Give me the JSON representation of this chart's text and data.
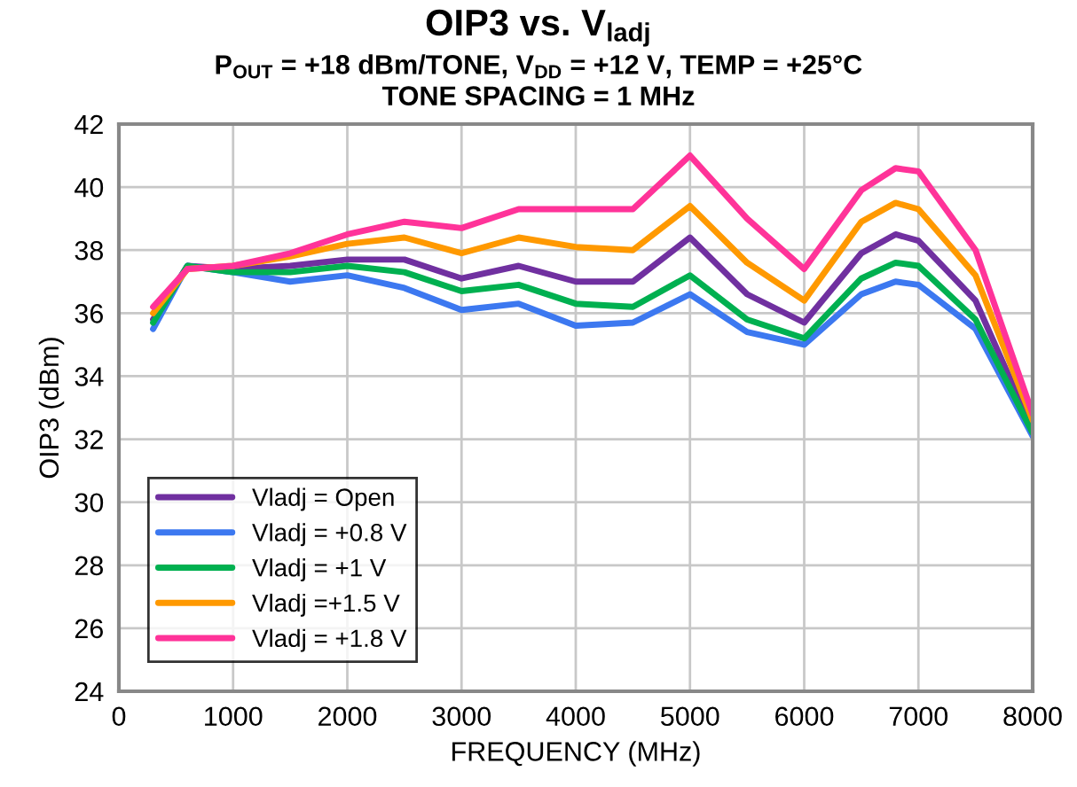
{
  "chart_data": {
    "type": "line",
    "title": "OIP3 vs. V$_{ladj}$",
    "subtitle": "P$_{OUT}$ = +18 dBm/TONE, V$_{DD}$ = +12 V, TEMP = +25°C\nTONE SPACING = 1 MHz",
    "xlabel": "FREQUENCY (MHz)",
    "ylabel": "OIP3 (dBm)",
    "x": [
      300,
      600,
      1000,
      1500,
      2000,
      2500,
      3000,
      3500,
      4000,
      4500,
      5000,
      5500,
      6000,
      6500,
      6800,
      7000,
      7500,
      8000
    ],
    "series": [
      {
        "name": "Vladj = Open",
        "color": "#7030a0",
        "values": [
          35.8,
          37.5,
          37.4,
          37.5,
          37.7,
          37.7,
          37.1,
          37.5,
          37.0,
          37.0,
          38.4,
          36.6,
          35.7,
          37.9,
          38.5,
          38.3,
          36.4,
          32.3
        ]
      },
      {
        "name": "Vladj = +0.8 V",
        "color": "#3c78f0",
        "values": [
          35.5,
          37.5,
          37.3,
          37.0,
          37.2,
          36.8,
          36.1,
          36.3,
          35.6,
          35.7,
          36.6,
          35.4,
          35.0,
          36.6,
          37.0,
          36.9,
          35.5,
          32.1
        ]
      },
      {
        "name": "Vladj = +1 V",
        "color": "#00b050",
        "values": [
          35.7,
          37.5,
          37.3,
          37.3,
          37.5,
          37.3,
          36.7,
          36.9,
          36.3,
          36.2,
          37.2,
          35.8,
          35.2,
          37.1,
          37.6,
          37.5,
          35.8,
          32.2
        ]
      },
      {
        "name": "Vladj =+1.5 V",
        "color": "#ff9900",
        "values": [
          36.0,
          37.4,
          37.5,
          37.8,
          38.2,
          38.4,
          37.9,
          38.4,
          38.1,
          38.0,
          39.4,
          37.6,
          36.4,
          38.9,
          39.5,
          39.3,
          37.2,
          32.6
        ]
      },
      {
        "name": "Vladj = +1.8 V",
        "color": "#ff3399",
        "values": [
          36.2,
          37.4,
          37.5,
          37.9,
          38.5,
          38.9,
          38.7,
          39.3,
          39.3,
          39.3,
          41.0,
          39.0,
          37.4,
          39.9,
          40.6,
          40.5,
          38.0,
          32.8
        ]
      }
    ],
    "xlim": [
      0,
      8000
    ],
    "xticks": [
      0,
      1000,
      2000,
      3000,
      4000,
      5000,
      6000,
      7000,
      8000
    ],
    "ylim": [
      24,
      42
    ],
    "yticks": [
      24,
      26,
      28,
      30,
      32,
      34,
      36,
      38,
      40,
      42
    ],
    "grid": true,
    "legend": "bottom left",
    "marker": "none",
    "line_style": "solid"
  }
}
